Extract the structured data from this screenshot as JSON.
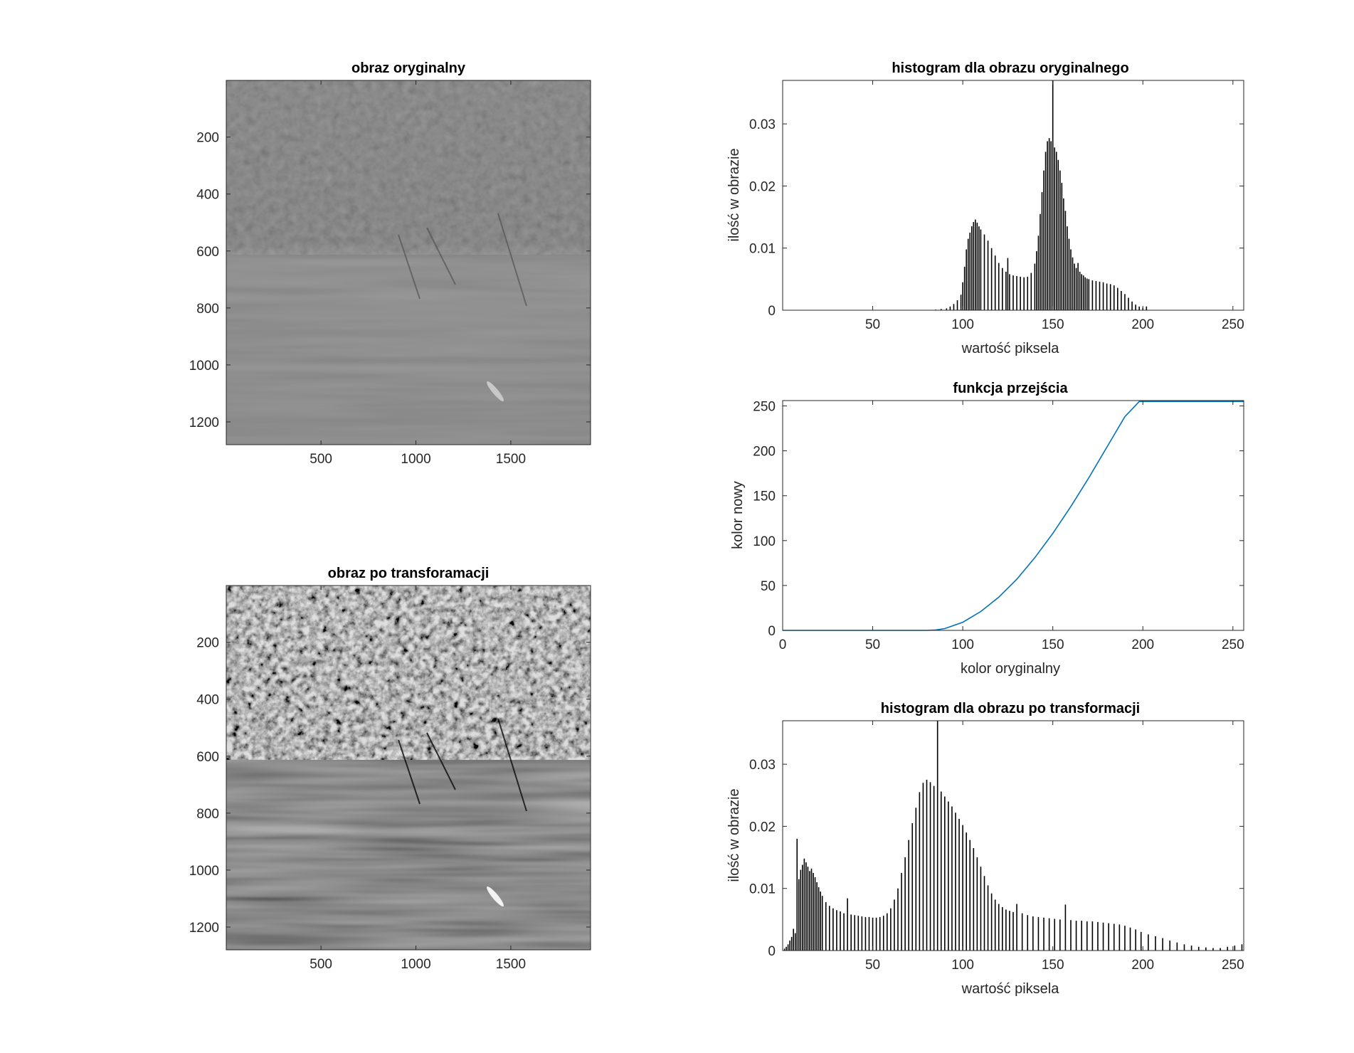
{
  "chart_data": [
    {
      "id": "img1",
      "type": "image",
      "title": "obraz oryginalny",
      "xlim": [
        1,
        1920
      ],
      "ylim": [
        1,
        1280
      ],
      "y_reversed": true,
      "xticks": [
        500,
        1000,
        1500
      ],
      "yticks": [
        200,
        400,
        600,
        800,
        1000,
        1200
      ],
      "tone": "low-contrast"
    },
    {
      "id": "img2",
      "type": "image",
      "title": "obraz po transforamacji",
      "xlim": [
        1,
        1920
      ],
      "ylim": [
        1,
        1280
      ],
      "y_reversed": true,
      "xticks": [
        500,
        1000,
        1500
      ],
      "yticks": [
        200,
        400,
        600,
        800,
        1000,
        1200
      ],
      "tone": "high-contrast"
    },
    {
      "id": "hist1",
      "type": "bar",
      "title": "histogram dla obrazu oryginalnego",
      "xlabel": "wartość piksela",
      "ylabel": "ilość w obrazie",
      "xlim": [
        0,
        256
      ],
      "ylim": [
        0,
        0.037
      ],
      "xticks": [
        50,
        100,
        150,
        200,
        250
      ],
      "yticks": [
        0,
        0.01,
        0.02,
        0.03
      ],
      "ytick_labels": [
        "0",
        "0.01",
        "0.02",
        "0.03"
      ],
      "bar_color": "#000000",
      "x": [
        85,
        88,
        91,
        93,
        95,
        97,
        99,
        100,
        101,
        102,
        103,
        104,
        105,
        106,
        107,
        108,
        109,
        110,
        112,
        114,
        116,
        118,
        120,
        122,
        124,
        125,
        126,
        128,
        130,
        132,
        134,
        136,
        138,
        140,
        141,
        142,
        143,
        144,
        145,
        146,
        147,
        148,
        149,
        150,
        151,
        152,
        153,
        154,
        155,
        156,
        157,
        158,
        159,
        160,
        161,
        162,
        163,
        164,
        165,
        166,
        167,
        168,
        169,
        170,
        172,
        174,
        176,
        178,
        180,
        182,
        184,
        186,
        188,
        190,
        192,
        194,
        196,
        198,
        200,
        202
      ],
      "values": [
        0.0001,
        0.0002,
        0.0003,
        0.0006,
        0.001,
        0.0016,
        0.0025,
        0.0045,
        0.007,
        0.0098,
        0.0115,
        0.0125,
        0.0135,
        0.0142,
        0.0146,
        0.0141,
        0.0135,
        0.013,
        0.0122,
        0.0112,
        0.01,
        0.0088,
        0.0076,
        0.0068,
        0.0062,
        0.0084,
        0.0058,
        0.0056,
        0.0055,
        0.0054,
        0.0053,
        0.0054,
        0.006,
        0.0075,
        0.0095,
        0.012,
        0.0155,
        0.019,
        0.0225,
        0.0255,
        0.0272,
        0.0277,
        0.0272,
        0.037,
        0.0262,
        0.0255,
        0.0242,
        0.0225,
        0.0205,
        0.018,
        0.016,
        0.0135,
        0.0115,
        0.0098,
        0.0085,
        0.0075,
        0.0068,
        0.0076,
        0.0062,
        0.0058,
        0.0056,
        0.0053,
        0.0051,
        0.005,
        0.0048,
        0.0047,
        0.0046,
        0.0045,
        0.0043,
        0.0042,
        0.004,
        0.0036,
        0.0031,
        0.0026,
        0.002,
        0.0014,
        0.0009,
        0.0006,
        0.0004,
        0.0006
      ]
    },
    {
      "id": "transfer",
      "type": "line",
      "title": "funkcja przejścia",
      "xlabel": "kolor oryginalny",
      "ylabel": "kolor nowy",
      "xlim": [
        0,
        256
      ],
      "ylim": [
        0,
        256
      ],
      "xticks": [
        0,
        50,
        100,
        150,
        200,
        250
      ],
      "yticks": [
        0,
        50,
        100,
        150,
        200,
        250
      ],
      "line_color": "#0072BD",
      "x": [
        0,
        40,
        80,
        85,
        90,
        100,
        110,
        120,
        130,
        140,
        150,
        160,
        170,
        180,
        190,
        198,
        210,
        230,
        256
      ],
      "values": [
        0,
        0,
        0,
        0.5,
        2,
        9,
        21,
        37,
        57,
        81,
        108,
        138,
        170,
        204,
        238,
        255,
        255,
        255,
        255
      ]
    },
    {
      "id": "hist2",
      "type": "bar",
      "title": "histogram dla obrazu po transformacji",
      "xlabel": "wartość piksela",
      "ylabel": "ilość w obrazie",
      "xlim": [
        0,
        256
      ],
      "ylim": [
        0,
        0.037
      ],
      "xticks": [
        50,
        100,
        150,
        200,
        250
      ],
      "yticks": [
        0,
        0.01,
        0.02,
        0.03
      ],
      "ytick_labels": [
        "0",
        "0.01",
        "0.02",
        "0.03"
      ],
      "bar_color": "#000000",
      "x": [
        1,
        2,
        3,
        4,
        5,
        6,
        7,
        8,
        9,
        10,
        11,
        12,
        13,
        14,
        15,
        16,
        17,
        18,
        19,
        20,
        21,
        22,
        24,
        26,
        28,
        30,
        32,
        34,
        36,
        38,
        40,
        42,
        44,
        46,
        48,
        50,
        52,
        54,
        56,
        58,
        60,
        62,
        64,
        66,
        68,
        70,
        72,
        74,
        76,
        78,
        80,
        82,
        84,
        86,
        88,
        90,
        92,
        94,
        96,
        98,
        100,
        102,
        104,
        106,
        108,
        110,
        112,
        114,
        116,
        118,
        120,
        122,
        124,
        126,
        128,
        130,
        133,
        136,
        139,
        142,
        145,
        148,
        151,
        154,
        157,
        160,
        163,
        166,
        169,
        172,
        175,
        178,
        181,
        184,
        187,
        190,
        193,
        196,
        199,
        203,
        207,
        211,
        215,
        219,
        223,
        227,
        231,
        235,
        239,
        243,
        247,
        251,
        255
      ],
      "values": [
        0.0003,
        0.0006,
        0.001,
        0.0016,
        0.0022,
        0.0035,
        0.0028,
        0.018,
        0.0115,
        0.013,
        0.0138,
        0.0148,
        0.0142,
        0.0135,
        0.0128,
        0.0132,
        0.0125,
        0.0118,
        0.011,
        0.0102,
        0.0095,
        0.0088,
        0.0078,
        0.0072,
        0.0068,
        0.0065,
        0.0063,
        0.006,
        0.0084,
        0.0058,
        0.0057,
        0.0056,
        0.0055,
        0.0054,
        0.0054,
        0.0053,
        0.0053,
        0.0054,
        0.0056,
        0.006,
        0.0068,
        0.0082,
        0.01,
        0.0125,
        0.015,
        0.0178,
        0.0205,
        0.023,
        0.0255,
        0.027,
        0.0275,
        0.0271,
        0.0265,
        0.037,
        0.0256,
        0.0248,
        0.024,
        0.0232,
        0.0222,
        0.0212,
        0.0202,
        0.019,
        0.0178,
        0.0165,
        0.015,
        0.0135,
        0.012,
        0.0105,
        0.0092,
        0.0082,
        0.0075,
        0.007,
        0.0066,
        0.0064,
        0.0062,
        0.0075,
        0.006,
        0.0057,
        0.0055,
        0.0054,
        0.0053,
        0.0052,
        0.0051,
        0.005,
        0.0074,
        0.0049,
        0.0048,
        0.0048,
        0.0047,
        0.0047,
        0.0046,
        0.0045,
        0.0044,
        0.0043,
        0.0042,
        0.004,
        0.0037,
        0.0034,
        0.003,
        0.0026,
        0.0023,
        0.002,
        0.0016,
        0.0013,
        0.001,
        0.0008,
        0.0006,
        0.0005,
        0.0004,
        0.0004,
        0.0006,
        0.0008,
        0.001
      ]
    }
  ]
}
